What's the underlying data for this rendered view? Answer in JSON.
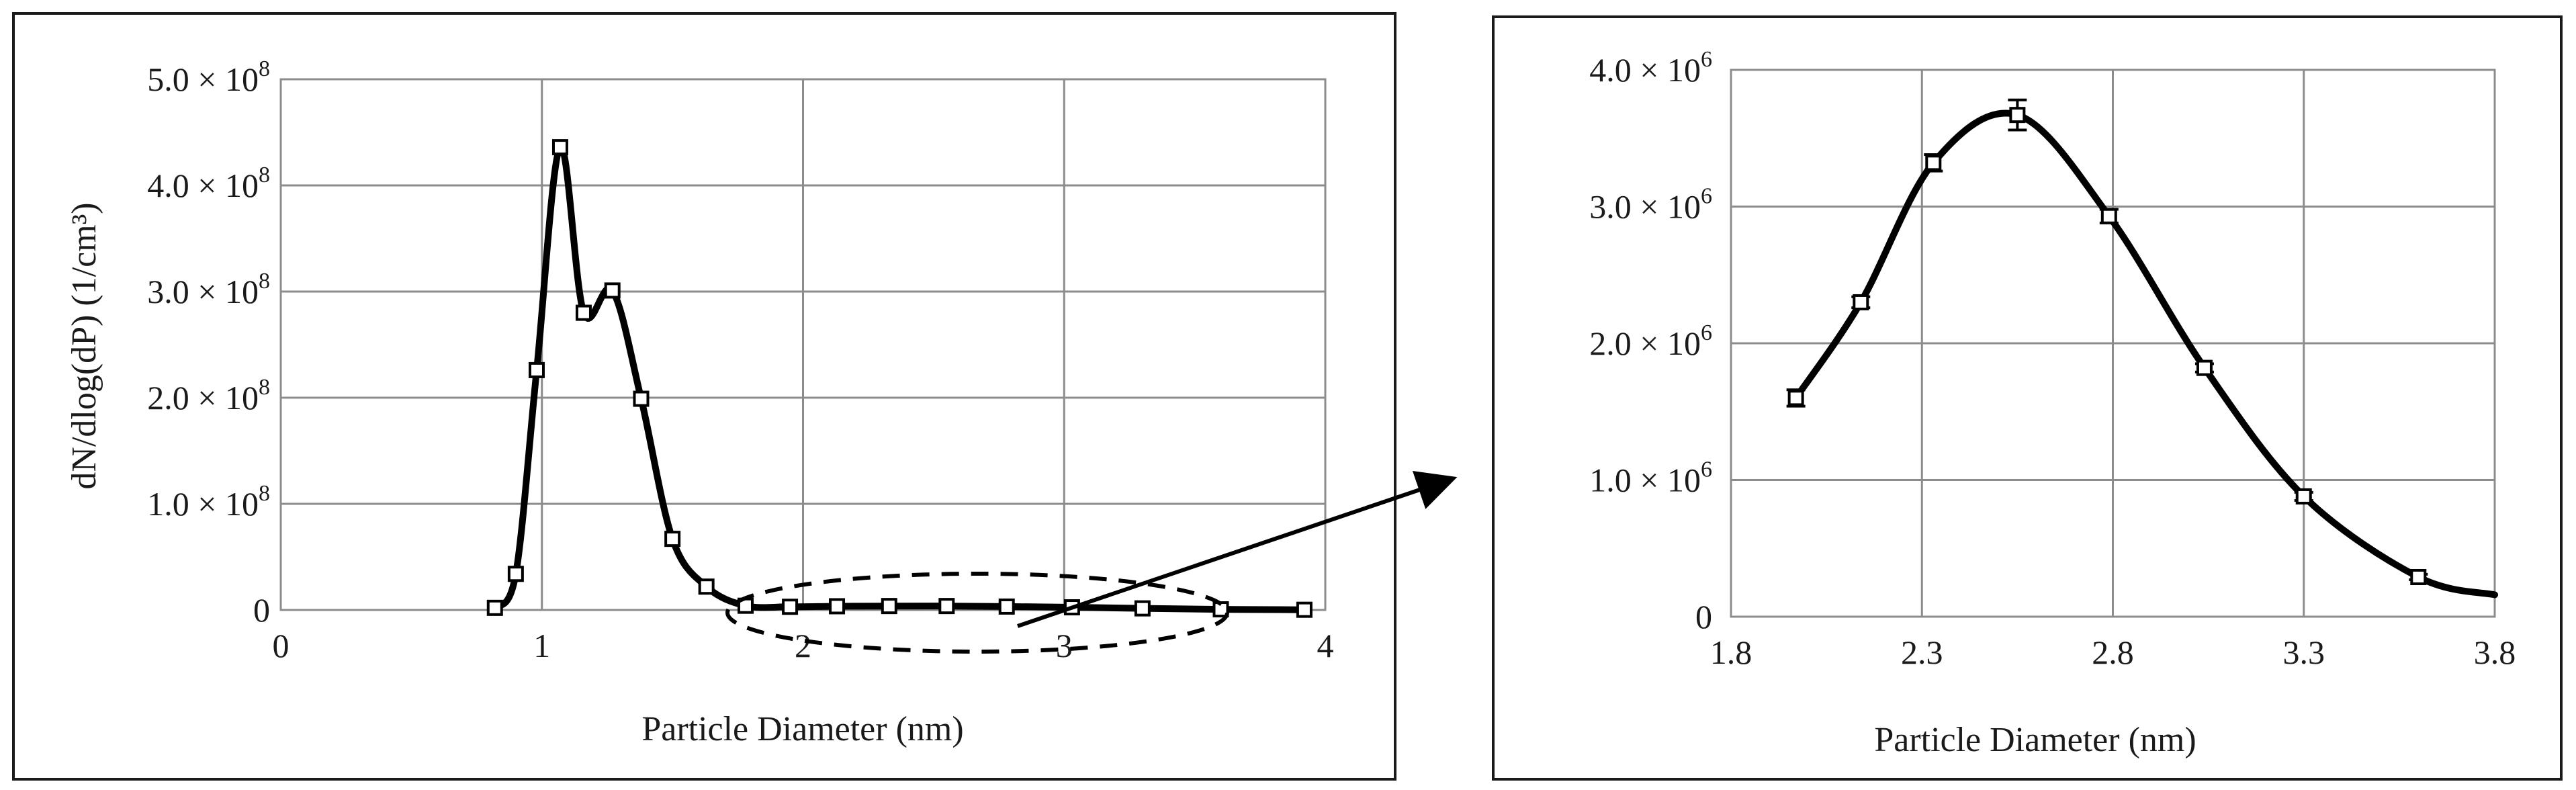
{
  "chart_data": [
    {
      "type": "line",
      "title": "",
      "xlabel": "Particle Diameter (nm)",
      "ylabel": "dN/dlog(dP) (1/cm³)",
      "xlim": [
        0,
        4
      ],
      "ylim": [
        0,
        500000000
      ],
      "grid": true,
      "x_ticks": [
        0,
        1,
        2,
        3,
        4
      ],
      "x_tick_labels": [
        "0",
        "1",
        "2",
        "3",
        "4"
      ],
      "y_ticks": [
        0,
        100000000,
        200000000,
        300000000,
        400000000,
        500000000
      ],
      "y_tick_labels": [
        {
          "mantissa": "0",
          "exp": ""
        },
        {
          "mantissa": "1.0 × 10",
          "exp": "8"
        },
        {
          "mantissa": "2.0 × 10",
          "exp": "8"
        },
        {
          "mantissa": "3.0 × 10",
          "exp": "8"
        },
        {
          "mantissa": "4.0 × 10",
          "exp": "8"
        },
        {
          "mantissa": "5.0 × 10",
          "exp": "8"
        }
      ],
      "x": [
        0.82,
        0.9,
        0.98,
        1.07,
        1.16,
        1.27,
        1.38,
        1.5,
        1.63,
        1.78,
        1.95,
        2.13,
        2.33,
        2.55,
        2.78,
        3.03,
        3.3,
        3.6,
        3.92
      ],
      "y": [
        2000000,
        34000000,
        226000000,
        436000000,
        280000000,
        301000000,
        199000000,
        67000000,
        22000000,
        4000000,
        3000000,
        3500000,
        3700000,
        3700000,
        3200000,
        2500000,
        1500000,
        600000,
        200000
      ],
      "annotation": "dashed ellipse around the 1.8–3.8 nm tail with arrow pointing to the zoomed panel"
    },
    {
      "type": "line",
      "title": "",
      "xlabel": "Particle Diameter (nm)",
      "ylabel": "",
      "xlim": [
        1.8,
        3.8
      ],
      "ylim": [
        0,
        4000000
      ],
      "grid": true,
      "x_ticks": [
        1.8,
        2.3,
        2.8,
        3.3,
        3.8
      ],
      "x_tick_labels": [
        "1.8",
        "2.3",
        "2.8",
        "3.3",
        "3.8"
      ],
      "y_ticks": [
        0,
        1000000,
        2000000,
        3000000,
        4000000
      ],
      "y_tick_labels": [
        {
          "mantissa": "0",
          "exp": ""
        },
        {
          "mantissa": "1.0 × 10",
          "exp": "6"
        },
        {
          "mantissa": "2.0 × 10",
          "exp": "6"
        },
        {
          "mantissa": "3.0 × 10",
          "exp": "6"
        },
        {
          "mantissa": "4.0 × 10",
          "exp": "6"
        }
      ],
      "x": [
        1.97,
        2.14,
        2.33,
        2.55,
        2.79,
        3.04,
        3.3,
        3.6
      ],
      "y": [
        1600000,
        2300000,
        3320000,
        3670000,
        2930000,
        1820000,
        880000,
        290000
      ],
      "error": [
        60000,
        40000,
        60000,
        110000,
        50000,
        30000,
        30000,
        20000
      ],
      "curve_end": {
        "x": 3.8,
        "y": 160000
      }
    }
  ]
}
